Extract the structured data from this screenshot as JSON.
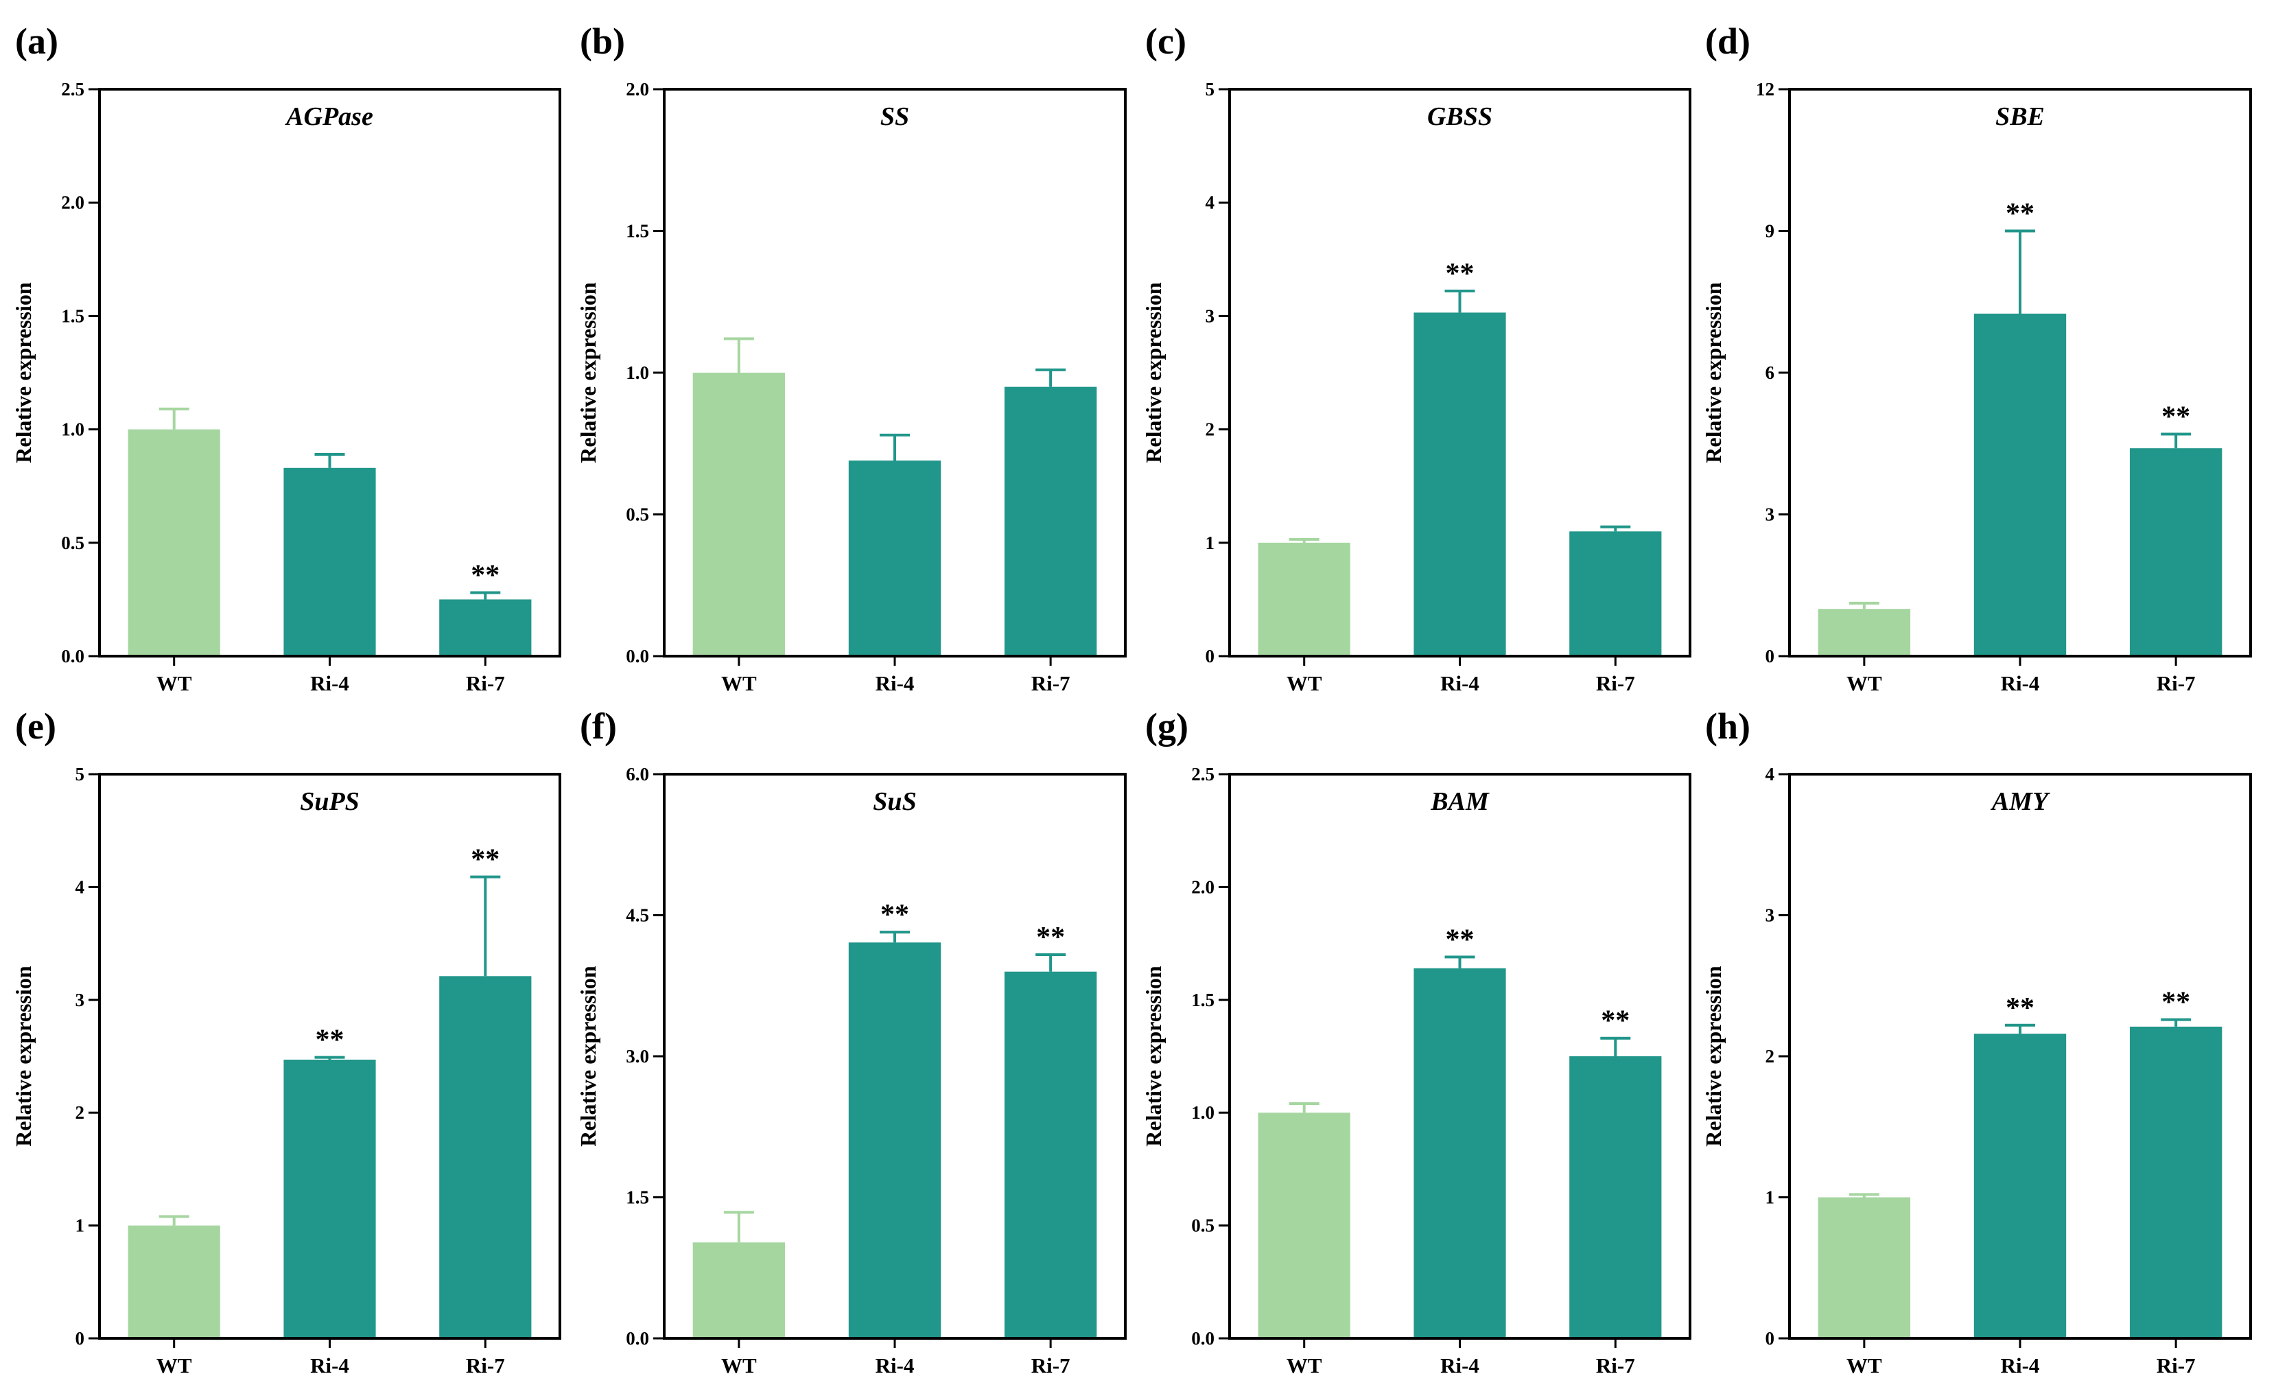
{
  "colors": {
    "wt": "#a6d6a0",
    "ri": "#21968a",
    "axis": "#000000"
  },
  "chart_data": [
    {
      "type": "bar",
      "panel_label": "(a)",
      "title": "AGPase",
      "ylabel": "Relative expression",
      "categories": [
        "WT",
        "Ri-4",
        "Ri-7"
      ],
      "values": [
        1.0,
        0.83,
        0.25
      ],
      "errors": [
        0.09,
        0.06,
        0.03
      ],
      "significance": [
        "",
        "",
        "**"
      ],
      "ylim": [
        0,
        2.5
      ],
      "yticks": [
        "0.0",
        "0.5",
        "1.0",
        "1.5",
        "2.0",
        "2.5"
      ]
    },
    {
      "type": "bar",
      "panel_label": "(b)",
      "title": "SS",
      "ylabel": "Relative expression",
      "categories": [
        "WT",
        "Ri-4",
        "Ri-7"
      ],
      "values": [
        1.0,
        0.69,
        0.95
      ],
      "errors": [
        0.12,
        0.09,
        0.06
      ],
      "significance": [
        "",
        "",
        ""
      ],
      "ylim": [
        0,
        2.0
      ],
      "yticks": [
        "0.0",
        "0.5",
        "1.0",
        "1.5",
        "2.0"
      ]
    },
    {
      "type": "bar",
      "panel_label": "(c)",
      "title": "GBSS",
      "ylabel": "Relative expression",
      "categories": [
        "WT",
        "Ri-4",
        "Ri-7"
      ],
      "values": [
        1.0,
        3.03,
        1.1
      ],
      "errors": [
        0.03,
        0.19,
        0.04
      ],
      "significance": [
        "",
        "**",
        ""
      ],
      "ylim": [
        0,
        5
      ],
      "yticks": [
        "0",
        "1",
        "2",
        "3",
        "4",
        "5"
      ]
    },
    {
      "type": "bar",
      "panel_label": "(d)",
      "title": "SBE",
      "ylabel": "Relative expression",
      "categories": [
        "WT",
        "Ri-4",
        "Ri-7"
      ],
      "values": [
        1.0,
        7.25,
        4.4
      ],
      "errors": [
        0.12,
        1.75,
        0.3
      ],
      "significance": [
        "",
        "**",
        "**"
      ],
      "ylim": [
        0,
        12
      ],
      "yticks": [
        "0",
        "3",
        "6",
        "9",
        "12"
      ]
    },
    {
      "type": "bar",
      "panel_label": "(e)",
      "title": "SuPS",
      "ylabel": "Relative expression",
      "categories": [
        "WT",
        "Ri-4",
        "Ri-7"
      ],
      "values": [
        1.0,
        2.47,
        3.21
      ],
      "errors": [
        0.08,
        0.02,
        0.88
      ],
      "significance": [
        "",
        "**",
        "**"
      ],
      "ylim": [
        0,
        5
      ],
      "yticks": [
        "0",
        "1",
        "2",
        "3",
        "4",
        "5"
      ]
    },
    {
      "type": "bar",
      "panel_label": "(f)",
      "title": "SuS",
      "ylabel": "Relative expression",
      "categories": [
        "WT",
        "Ri-4",
        "Ri-7"
      ],
      "values": [
        1.02,
        4.21,
        3.9
      ],
      "errors": [
        0.32,
        0.11,
        0.18
      ],
      "significance": [
        "",
        "**",
        "**"
      ],
      "ylim": [
        0,
        6.0
      ],
      "yticks": [
        "0.0",
        "1.5",
        "3.0",
        "4.5",
        "6.0"
      ]
    },
    {
      "type": "bar",
      "panel_label": "(g)",
      "title": "BAM",
      "ylabel": "Relative expression",
      "categories": [
        "WT",
        "Ri-4",
        "Ri-7"
      ],
      "values": [
        1.0,
        1.64,
        1.25
      ],
      "errors": [
        0.04,
        0.05,
        0.08
      ],
      "significance": [
        "",
        "**",
        "**"
      ],
      "ylim": [
        0,
        2.5
      ],
      "yticks": [
        "0.0",
        "0.5",
        "1.0",
        "1.5",
        "2.0",
        "2.5"
      ]
    },
    {
      "type": "bar",
      "panel_label": "(h)",
      "title": "AMY",
      "ylabel": "Relative expression",
      "categories": [
        "WT",
        "Ri-4",
        "Ri-7"
      ],
      "values": [
        1.0,
        2.16,
        2.21
      ],
      "errors": [
        0.02,
        0.06,
        0.05
      ],
      "significance": [
        "",
        "**",
        "**"
      ],
      "ylim": [
        0,
        4
      ],
      "yticks": [
        "0",
        "1",
        "2",
        "3",
        "4"
      ]
    }
  ]
}
